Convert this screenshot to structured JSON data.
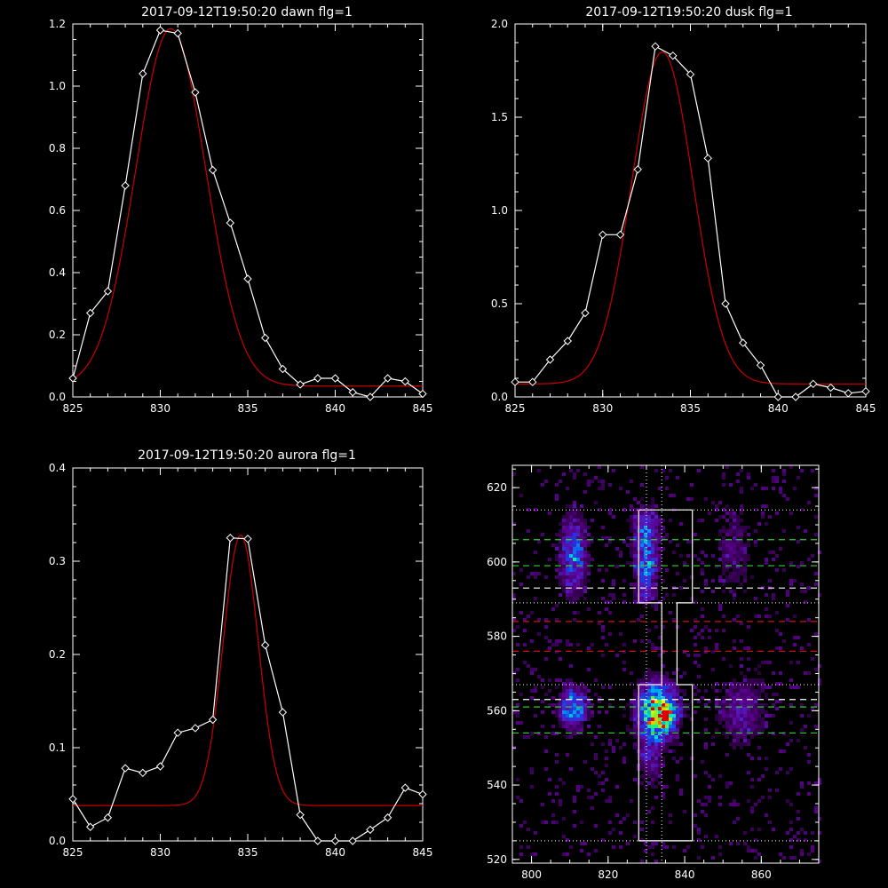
{
  "colors": {
    "background": "#000000",
    "axes": "#ffffff",
    "data_line": "#ffffff",
    "fit_line": "#cc0000",
    "green_dash": "#33cc33",
    "red_dash": "#cc1111",
    "white_dash": "#ffffff"
  },
  "chart_data": [
    {
      "type": "line",
      "title": "2017-09-12T19:50:20 dawn flg=1",
      "xlim": [
        825,
        845
      ],
      "ylim": [
        0,
        1.2
      ],
      "x_ticks": [
        "825",
        "830",
        "835",
        "840",
        "845"
      ],
      "y_ticks": [
        "0.0",
        "0.2",
        "0.4",
        "0.6",
        "0.8",
        "1.0",
        "1.2"
      ],
      "series": [
        {
          "marker": "diamond",
          "x": [
            825,
            826,
            827,
            828,
            829,
            830,
            831,
            832,
            833,
            834,
            835,
            836,
            837,
            838,
            839,
            840,
            841,
            842,
            843,
            844,
            845
          ],
          "y": [
            0.06,
            0.27,
            0.34,
            0.68,
            1.04,
            1.18,
            1.17,
            0.98,
            0.73,
            0.56,
            0.38,
            0.19,
            0.09,
            0.04,
            0.06,
            0.06,
            0.015,
            0.0,
            0.06,
            0.05,
            0.01
          ]
        },
        {
          "marker": "none",
          "gaussian": {
            "amplitude": 1.15,
            "center": 830.6,
            "sigma": 2.0,
            "offset": 0.035
          }
        }
      ]
    },
    {
      "type": "line",
      "title": "2017-09-12T19:50:20 dusk flg=1",
      "xlim": [
        825,
        845
      ],
      "ylim": [
        0,
        2.0
      ],
      "x_ticks": [
        "825",
        "830",
        "835",
        "840",
        "845"
      ],
      "y_ticks": [
        "0.0",
        "0.5",
        "1.0",
        "1.5",
        "2.0"
      ],
      "series": [
        {
          "marker": "diamond",
          "x": [
            825,
            826,
            827,
            828,
            829,
            830,
            831,
            832,
            833,
            834,
            835,
            836,
            837,
            838,
            839,
            840,
            841,
            842,
            843,
            844,
            845
          ],
          "y": [
            0.08,
            0.08,
            0.2,
            0.3,
            0.45,
            0.87,
            0.87,
            1.22,
            1.88,
            1.83,
            1.73,
            1.28,
            0.5,
            0.29,
            0.17,
            0.0,
            0.0,
            0.07,
            0.05,
            0.02,
            0.03
          ]
        },
        {
          "marker": "none",
          "gaussian": {
            "amplitude": 1.78,
            "center": 833.4,
            "sigma": 1.75,
            "offset": 0.07
          }
        }
      ]
    },
    {
      "type": "line",
      "title": "2017-09-12T19:50:20 aurora flg=1",
      "xlim": [
        825,
        845
      ],
      "ylim": [
        0,
        0.4
      ],
      "x_ticks": [
        "825",
        "830",
        "835",
        "840",
        "845"
      ],
      "y_ticks": [
        "0.0",
        "0.1",
        "0.2",
        "0.3",
        "0.4"
      ],
      "series": [
        {
          "marker": "diamond",
          "x": [
            825,
            826,
            827,
            828,
            829,
            830,
            831,
            832,
            833,
            834,
            835,
            836,
            837,
            838,
            839,
            840,
            841,
            842,
            843,
            844,
            845
          ],
          "y": [
            0.045,
            0.015,
            0.025,
            0.078,
            0.073,
            0.08,
            0.116,
            0.121,
            0.13,
            0.325,
            0.324,
            0.21,
            0.138,
            0.028,
            0.0,
            0.0,
            0.0,
            0.012,
            0.025,
            0.057,
            0.05
          ]
        },
        {
          "marker": "none",
          "gaussian": {
            "amplitude": 0.29,
            "center": 834.6,
            "sigma": 1.0,
            "offset": 0.038
          }
        }
      ]
    },
    {
      "type": "heatmap",
      "title": "",
      "xlim": [
        795,
        875
      ],
      "ylim": [
        519,
        626
      ],
      "x_ticks": [
        "800",
        "820",
        "840",
        "860"
      ],
      "y_ticks": [
        "520",
        "540",
        "560",
        "580",
        "600",
        "620"
      ],
      "hot_spots": [
        {
          "x": 811,
          "y": 602,
          "sx": 2.2,
          "sy": 6.5,
          "amp": 0.42
        },
        {
          "x": 811,
          "y": 561,
          "sx": 2.2,
          "sy": 3.5,
          "amp": 0.55
        },
        {
          "x": 830,
          "y": 608,
          "sx": 2.2,
          "sy": 4.0,
          "amp": 0.42
        },
        {
          "x": 830,
          "y": 599,
          "sx": 2.0,
          "sy": 3.0,
          "amp": 0.45
        },
        {
          "x": 830,
          "y": 592,
          "sx": 1.8,
          "sy": 2.0,
          "amp": 0.32
        },
        {
          "x": 833,
          "y": 560,
          "sx": 3.2,
          "sy": 4.5,
          "amp": 0.92
        },
        {
          "x": 835,
          "y": 558,
          "sx": 1.4,
          "sy": 2.2,
          "amp": 0.38
        },
        {
          "x": 831,
          "y": 548,
          "sx": 2.0,
          "sy": 5.0,
          "amp": 0.22
        },
        {
          "x": 855,
          "y": 560,
          "sx": 4.0,
          "sy": 6.0,
          "amp": 0.2
        },
        {
          "x": 853,
          "y": 603,
          "sx": 3.0,
          "sy": 7.0,
          "amp": 0.12
        }
      ],
      "box_outline": [
        [
          828,
          614
        ],
        [
          842,
          614
        ],
        [
          842,
          589
        ],
        [
          838,
          589
        ],
        [
          838,
          567
        ],
        [
          842,
          567
        ],
        [
          842,
          525
        ],
        [
          828,
          525
        ],
        [
          828,
          567
        ],
        [
          834,
          567
        ],
        [
          834,
          589
        ],
        [
          828,
          589
        ],
        [
          828,
          614
        ]
      ],
      "dotted_h": [
        614,
        589,
        567,
        525
      ],
      "dotted_v": [
        830,
        834
      ],
      "green_dashed_h": [
        606,
        599,
        561,
        554
      ],
      "white_dashed_h": [
        593,
        563
      ],
      "red_dashed_h": [
        584,
        576
      ]
    }
  ]
}
